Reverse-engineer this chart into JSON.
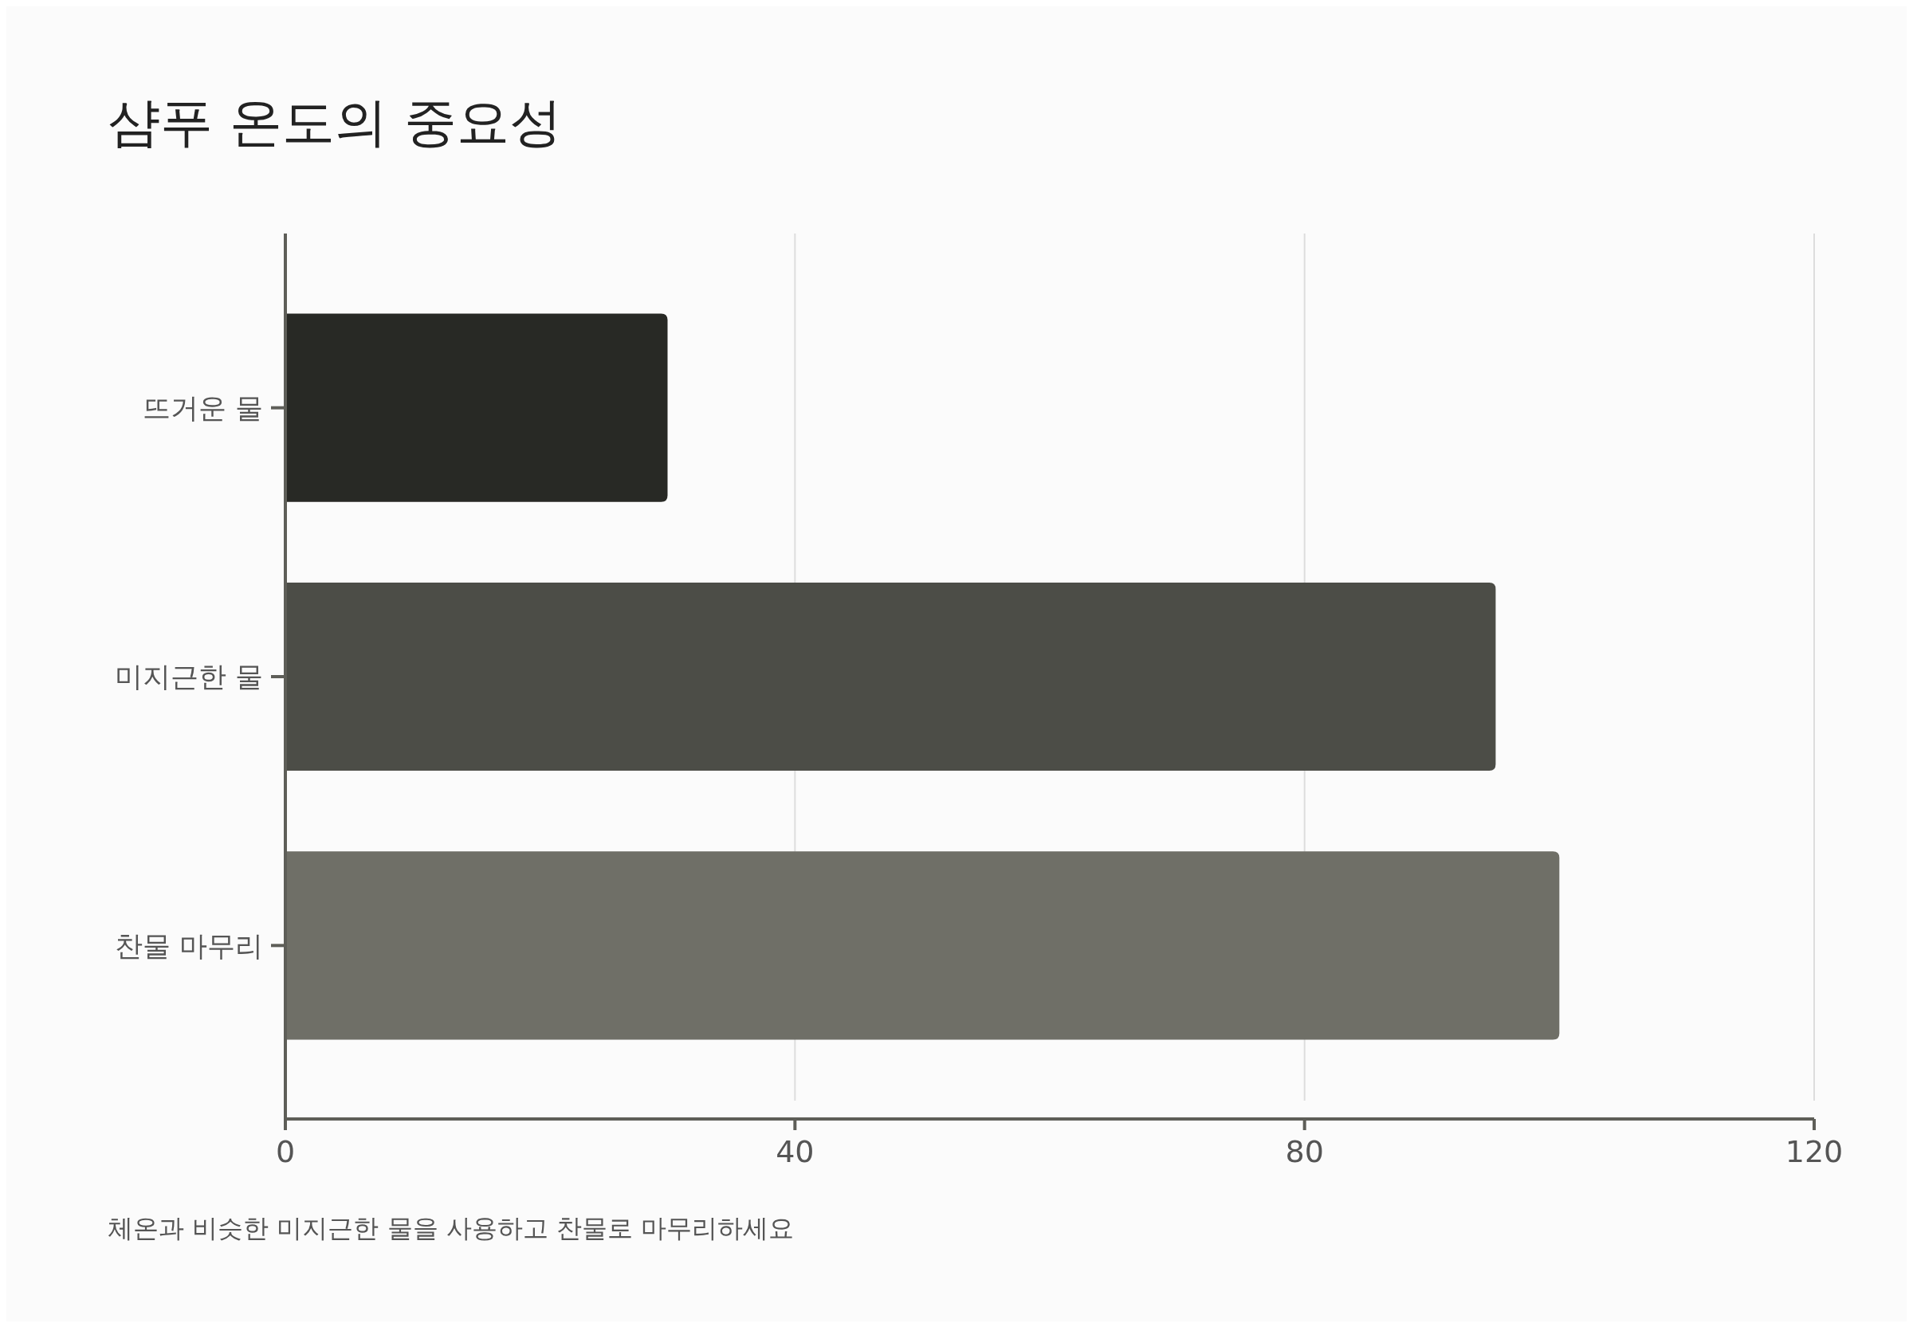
{
  "chart_data": {
    "type": "bar",
    "orientation": "horizontal",
    "title": "샴푸 온도의 중요성",
    "categories": [
      "뜨거운 물",
      "미지근한 물",
      "찬물 마무리"
    ],
    "values": [
      30,
      95,
      100
    ],
    "colors": [
      "#282925",
      "#4c4d47",
      "#6f6f67"
    ],
    "xlim": [
      0,
      120
    ],
    "xticks": [
      0,
      40,
      80,
      120
    ],
    "grid": "x",
    "annotations": [
      "체온과 비슷한 미지근한 물을 사용하고 찬물로 마무리하세요"
    ]
  }
}
